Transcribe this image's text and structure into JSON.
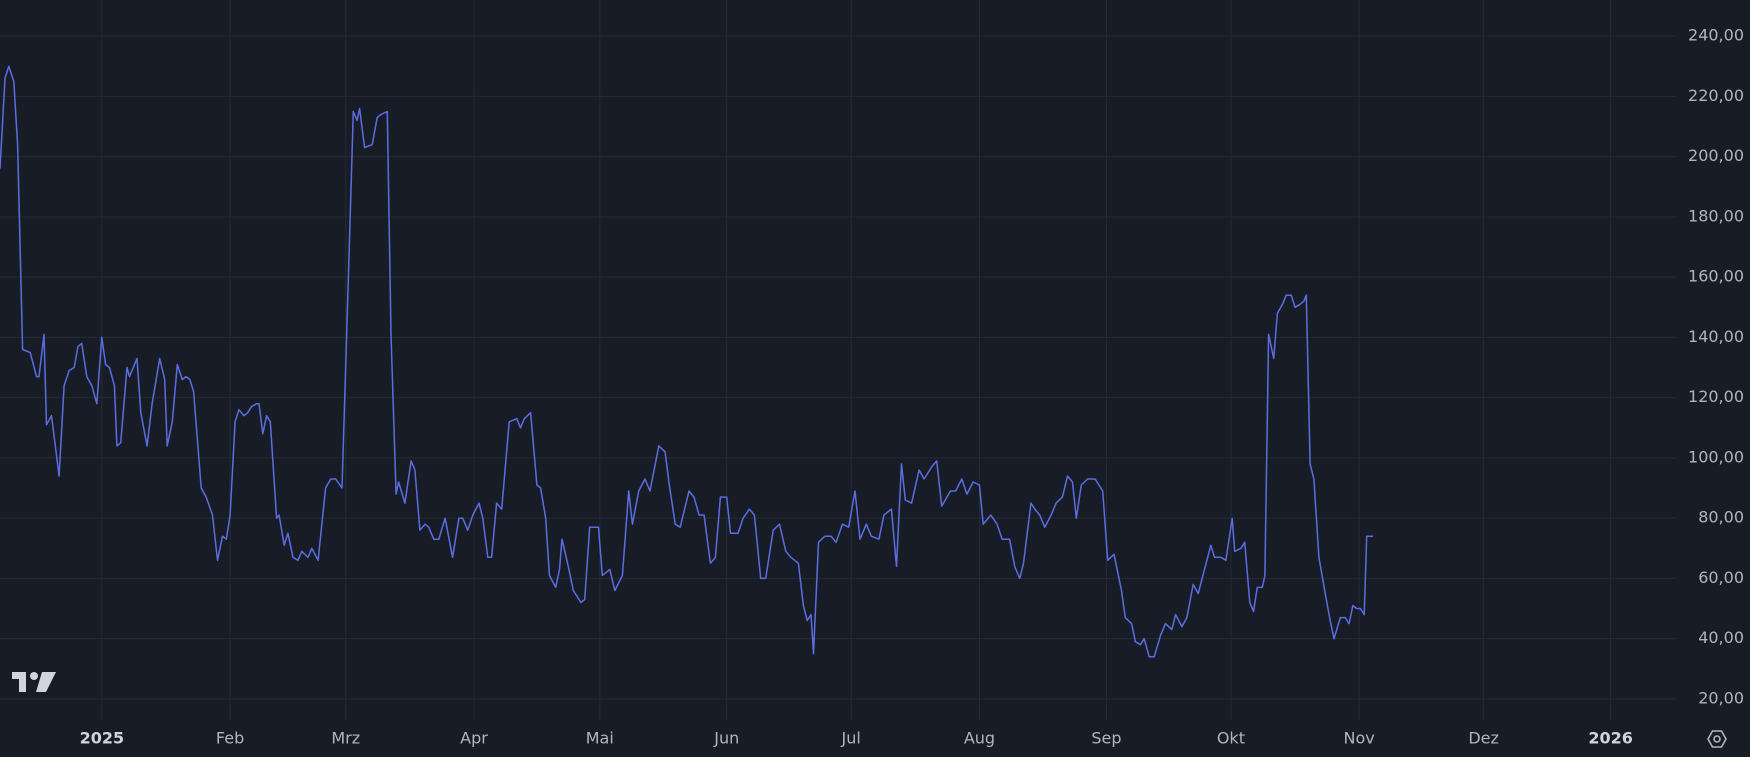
{
  "chart_data": {
    "type": "line",
    "x": [
      -0.81,
      -0.77,
      -0.74,
      -0.7,
      -0.67,
      -0.63,
      -0.57,
      -0.52,
      -0.5,
      -0.46,
      -0.44,
      -0.4,
      -0.34,
      -0.3,
      -0.26,
      -0.22,
      -0.19,
      -0.16,
      -0.12,
      -0.08,
      -0.04,
      0,
      0.03,
      0.06,
      0.1,
      0.12,
      0.15,
      0.2,
      0.22,
      0.28,
      0.31,
      0.36,
      0.4,
      0.46,
      0.5,
      0.52,
      0.56,
      0.6,
      0.64,
      0.67,
      0.7,
      0.73,
      0.79,
      0.83,
      0.88,
      0.92,
      0.96,
      0.99,
      1.02,
      1.06,
      1.09,
      1.13,
      1.16,
      1.19,
      1.23,
      1.25,
      1.28,
      1.31,
      1.34,
      1.39,
      1.41,
      1.45,
      1.48,
      1.52,
      1.56,
      1.59,
      1.64,
      1.67,
      1.72,
      1.78,
      1.82,
      1.86,
      1.91,
      1.96,
      2.0,
      2.03,
      2.05,
      2.09,
      2.15,
      2.19,
      2.22,
      2.27,
      2.3,
      2.34,
      2.36,
      2.41,
      2.46,
      2.49,
      2.53,
      2.57,
      2.6,
      2.64,
      2.68,
      2.73,
      2.79,
      2.84,
      2.87,
      2.91,
      2.95,
      3.0,
      3.03,
      3.07,
      3.1,
      3.14,
      3.18,
      3.24,
      3.3,
      3.33,
      3.36,
      3.41,
      3.46,
      3.49,
      3.53,
      3.56,
      3.61,
      3.64,
      3.66,
      3.71,
      3.75,
      3.81,
      3.84,
      3.88,
      3.95,
      3.98,
      4.04,
      4.08,
      4.14,
      4.19,
      4.22,
      4.27,
      4.32,
      4.36,
      4.43,
      4.48,
      4.51,
      4.56,
      4.6,
      4.67,
      4.71,
      4.75,
      4.79,
      4.84,
      4.88,
      4.92,
      4.97,
      5.0,
      5.06,
      5.1,
      5.15,
      5.19,
      5.24,
      5.28,
      5.34,
      5.39,
      5.44,
      5.48,
      5.54,
      5.58,
      5.61,
      5.64,
      5.66,
      5.7,
      5.75,
      5.8,
      5.84,
      5.89,
      5.94,
      5.99,
      6.03,
      6.08,
      6.12,
      6.18,
      6.22,
      6.28,
      6.32,
      6.36,
      6.39,
      6.44,
      6.5,
      6.54,
      6.6,
      6.64,
      6.68,
      6.75,
      6.79,
      6.84,
      6.88,
      6.93,
      6.98,
      7.01,
      7.07,
      7.12,
      7.16,
      7.22,
      7.26,
      7.3,
      7.33,
      7.39,
      7.42,
      7.46,
      7.5,
      7.55,
      7.59,
      7.64,
      7.68,
      7.72,
      7.75,
      7.79,
      7.84,
      7.9,
      7.96,
      8.0,
      8.05,
      8.11,
      8.14,
      8.19,
      8.22,
      8.26,
      8.29,
      8.33,
      8.37,
      8.42,
      8.46,
      8.51,
      8.54,
      8.59,
      8.63,
      8.68,
      8.72,
      8.77,
      8.82,
      8.85,
      8.9,
      8.94,
      8.99,
      9.01,
      9.06,
      9.09,
      9.13,
      9.16,
      9.19,
      9.23,
      9.25,
      9.28,
      9.32,
      9.35,
      9.39,
      9.42,
      9.46,
      9.49,
      9.53,
      9.56,
      9.58,
      9.61,
      9.64,
      9.68,
      9.73,
      9.77,
      9.8,
      9.85,
      9.89,
      9.92,
      9.95,
      9.98,
      10.01,
      10.04,
      10.06,
      10.11
    ],
    "values": [
      196,
      226,
      230,
      225,
      204,
      136,
      135,
      127,
      127,
      141,
      111,
      114,
      94,
      124,
      129,
      130,
      137,
      138,
      127,
      124,
      118,
      140,
      131,
      130,
      124,
      104,
      105,
      130,
      127,
      133,
      115,
      104,
      118,
      133,
      126,
      104,
      112,
      131,
      126,
      127,
      126,
      122,
      90,
      87,
      81,
      66,
      74,
      73,
      81,
      112,
      116,
      114,
      115,
      117,
      118,
      118,
      108,
      114,
      112,
      80,
      81,
      71,
      75,
      67,
      66,
      69,
      67,
      70,
      66,
      90,
      93,
      93,
      90,
      159,
      215,
      212,
      216,
      203,
      204,
      213,
      214,
      215,
      141,
      88,
      92,
      85,
      99,
      96,
      76,
      78,
      77,
      73,
      73,
      80,
      67,
      80,
      80,
      76,
      81,
      85,
      80,
      67,
      67,
      85,
      83,
      112,
      113,
      110,
      113,
      115,
      91,
      90,
      80,
      61,
      57,
      63,
      73,
      64,
      56,
      52,
      53,
      77,
      77,
      61,
      63,
      56,
      61,
      89,
      78,
      89,
      93,
      89,
      104,
      102,
      92,
      78,
      77,
      89,
      87,
      81,
      81,
      65,
      67,
      87,
      87,
      75,
      75,
      80,
      83,
      81,
      60,
      60,
      76,
      78,
      69,
      67,
      65,
      51,
      46,
      48,
      35,
      72,
      74,
      74,
      72,
      78,
      77,
      89,
      73,
      78,
      74,
      73,
      81,
      83,
      64,
      98,
      86,
      85,
      96,
      93,
      97,
      99,
      84,
      89,
      89,
      93,
      88,
      92,
      91,
      78,
      81,
      78,
      73,
      73,
      64,
      60,
      65,
      85,
      83,
      81,
      77,
      81,
      85,
      87,
      94,
      92,
      80,
      91,
      93,
      93,
      89,
      66,
      68,
      56,
      47,
      45,
      39,
      38,
      40,
      34,
      34,
      41,
      45,
      43,
      48,
      44,
      47,
      58,
      55,
      63,
      71,
      67,
      67,
      66,
      80,
      69,
      70,
      72,
      52,
      49,
      57,
      57,
      61,
      141,
      133,
      148,
      151,
      154,
      154,
      150,
      151,
      152,
      154,
      98,
      93,
      67,
      55,
      46,
      40,
      47,
      47,
      45,
      51,
      50,
      50,
      48,
      74,
      74
    ],
    "color": "#5b6ee1",
    "xlim": [
      -0.81,
      12.52
    ],
    "xticks": [
      {
        "value": 0,
        "label": "2025"
      },
      {
        "value": 1.02,
        "label": "Feb"
      },
      {
        "value": 1.94,
        "label": "Mrz"
      },
      {
        "value": 2.96,
        "label": "Apr"
      },
      {
        "value": 3.96,
        "label": "Mai"
      },
      {
        "value": 4.97,
        "label": "Jun"
      },
      {
        "value": 5.96,
        "label": "Jul"
      },
      {
        "value": 6.98,
        "label": "Aug"
      },
      {
        "value": 7.99,
        "label": "Sep"
      },
      {
        "value": 8.98,
        "label": "Okt"
      },
      {
        "value": 10,
        "label": "Nov"
      },
      {
        "value": 10.99,
        "label": "Dez"
      },
      {
        "value": 12,
        "label": "2026"
      }
    ],
    "ylim": [
      13,
      252
    ],
    "yticks": [
      {
        "value": 20,
        "label": "20,00"
      },
      {
        "value": 40,
        "label": "40,00"
      },
      {
        "value": 60,
        "label": "60,00"
      },
      {
        "value": 80,
        "label": "80,00"
      },
      {
        "value": 100,
        "label": "100,00"
      },
      {
        "value": 120,
        "label": "120,00"
      },
      {
        "value": 140,
        "label": "140,00"
      },
      {
        "value": 160,
        "label": "160,00"
      },
      {
        "value": 180,
        "label": "180,00"
      },
      {
        "value": 200,
        "label": "200,00"
      },
      {
        "value": 220,
        "label": "220,00"
      },
      {
        "value": 240,
        "label": "240,00"
      }
    ],
    "grid": true
  }
}
